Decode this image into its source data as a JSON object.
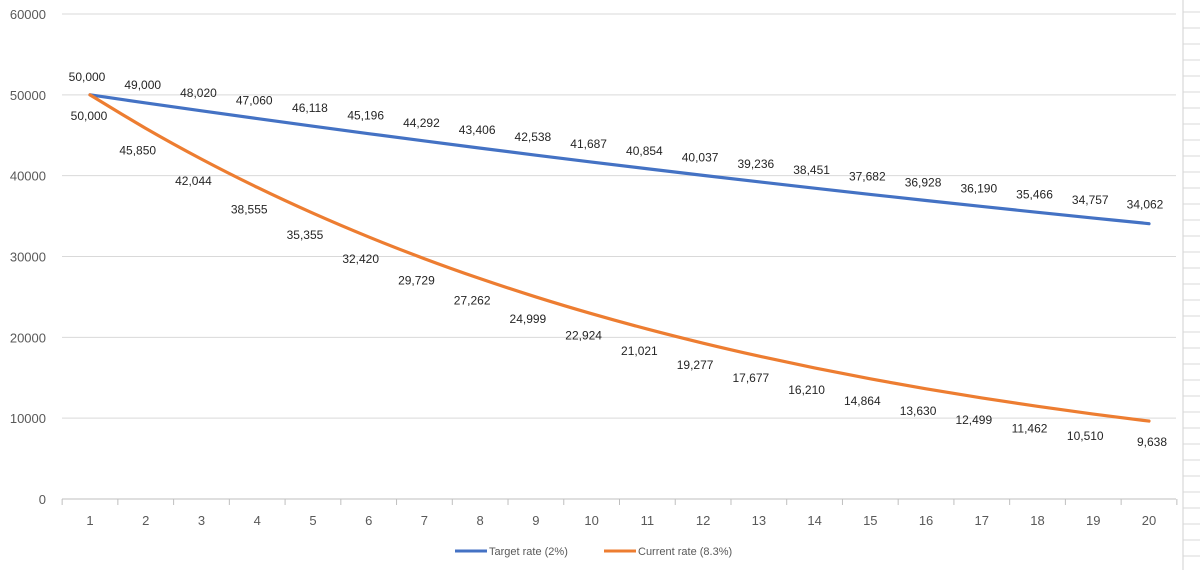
{
  "chart_data": {
    "type": "line",
    "title": "",
    "xlabel": "",
    "ylabel": "",
    "x": [
      1,
      2,
      3,
      4,
      5,
      6,
      7,
      8,
      9,
      10,
      11,
      12,
      13,
      14,
      15,
      16,
      17,
      18,
      19,
      20
    ],
    "ylim": [
      0,
      60000
    ],
    "yticks": [
      "0",
      "10000",
      "20000",
      "30000",
      "40000",
      "50000",
      "60000"
    ],
    "yticks_values": [
      0,
      10000,
      20000,
      30000,
      40000,
      50000,
      60000
    ],
    "grid": true,
    "legend": "bottom",
    "series": [
      {
        "name": "Target rate (2%)",
        "color": "#4472c4",
        "values": [
          50000,
          49000,
          48020,
          47060,
          46118,
          45196,
          44292,
          43406,
          42538,
          41687,
          40854,
          40037,
          39236,
          38451,
          37682,
          36928,
          36190,
          35466,
          34757,
          34062
        ],
        "labels": [
          "50,000",
          "49,000",
          "48,020",
          "47,060",
          "46,118",
          "45,196",
          "44,292",
          "43,406",
          "42,538",
          "41,687",
          "40,854",
          "40,037",
          "39,236",
          "38,451",
          "37,682",
          "36,928",
          "36,190",
          "35,466",
          "34,757",
          "34,062"
        ]
      },
      {
        "name": "Current rate (8.3%)",
        "color": "#ed7d31",
        "values": [
          50000,
          45850,
          42044,
          38555,
          35355,
          32420,
          29729,
          27262,
          24999,
          22924,
          21021,
          19277,
          17677,
          16210,
          14864,
          13630,
          12499,
          11462,
          10510,
          9638
        ],
        "labels": [
          "50,000",
          "45,850",
          "42,044",
          "38,555",
          "35,355",
          "32,420",
          "29,729",
          "27,262",
          "24,999",
          "22,924",
          "21,021",
          "19,277",
          "17,677",
          "16,210",
          "14,864",
          "13,630",
          "12,499",
          "11,462",
          "10,510",
          "9,638"
        ]
      }
    ]
  }
}
